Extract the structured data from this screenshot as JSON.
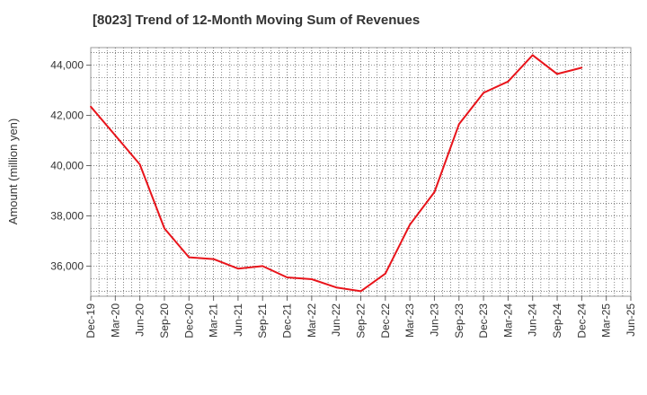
{
  "title": "[8023]  Trend of 12-Month Moving Sum of Revenues",
  "chart_data": {
    "type": "line",
    "title": "[8023]  Trend of 12-Month Moving Sum of Revenues",
    "xlabel": "",
    "ylabel": "Amount (million yen)",
    "ylim": [
      34800,
      44700
    ],
    "yticks": [
      36000,
      38000,
      40000,
      42000,
      44000
    ],
    "ytick_labels": [
      "36,000",
      "38,000",
      "40,000",
      "42,000",
      "44,000"
    ],
    "categories": [
      "Dec-19",
      "Mar-20",
      "Jun-20",
      "Sep-20",
      "Dec-20",
      "Mar-21",
      "Jun-21",
      "Sep-21",
      "Dec-21",
      "Mar-22",
      "Jun-22",
      "Sep-22",
      "Dec-22",
      "Mar-23",
      "Jun-23",
      "Sep-23",
      "Dec-23",
      "Mar-24",
      "Jun-24",
      "Sep-24",
      "Dec-24",
      "Mar-25",
      "Jun-25"
    ],
    "grid": true,
    "color": "#e8141b",
    "series": [
      {
        "values": [
          42350,
          41200,
          40050,
          37500,
          36350,
          36280,
          35900,
          36000,
          35550,
          35480,
          35150,
          35000,
          35700,
          37650,
          38950,
          41650,
          42900,
          43350,
          44400,
          43650,
          43900,
          null,
          null
        ]
      }
    ]
  }
}
